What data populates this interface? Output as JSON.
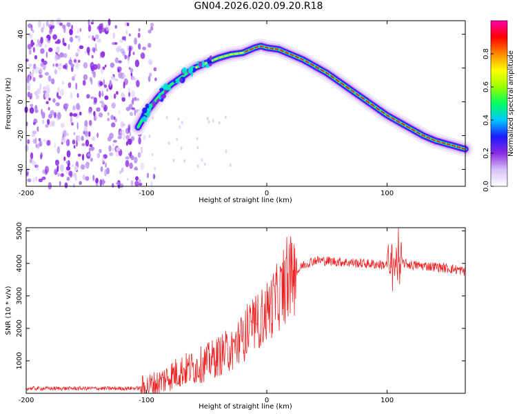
{
  "title": "GN04.2026.020.09.20.R18",
  "chart_data": [
    {
      "type": "heatmap",
      "title": "GN04.2026.020.09.20.R18",
      "xlabel": "Height of straight line (km)",
      "ylabel": "Frequency (Hz)",
      "xlim": [
        -200,
        165
      ],
      "ylim": [
        -50,
        48
      ],
      "xticks": [
        -200,
        -100,
        0,
        100
      ],
      "yticks": [
        -40,
        -20,
        0,
        20,
        40
      ],
      "noise_region_x": [
        -200,
        -100
      ],
      "ridge": {
        "x": [
          -107,
          -100,
          -90,
          -80,
          -70,
          -60,
          -50,
          -40,
          -30,
          -20,
          -10,
          -5,
          0,
          10,
          20,
          30,
          40,
          50,
          60,
          70,
          80,
          90,
          100,
          110,
          120,
          130,
          140,
          150,
          160,
          165
        ],
        "freq": [
          -15,
          -6,
          3,
          10,
          15,
          20,
          23,
          26,
          28,
          29,
          32,
          33,
          32,
          31,
          28,
          25,
          21,
          17,
          12,
          7,
          2,
          -3,
          -8,
          -12,
          -16,
          -20,
          -23,
          -25,
          -27,
          -28
        ]
      },
      "colorbar": {
        "label": "Normalized spectral amplitude",
        "range": [
          0.0,
          1.0
        ],
        "ticks": [
          "0.0",
          "0.2",
          "0.4",
          "0.6",
          "0.8"
        ],
        "tick_values": [
          0.0,
          0.2,
          0.4,
          0.6,
          0.8
        ],
        "colors": [
          "#ffffff",
          "#d6c2f7",
          "#8a2be2",
          "#1a1aff",
          "#00c8ff",
          "#00ff60",
          "#9aff00",
          "#ffff00",
          "#ff8800",
          "#ff0000",
          "#ff00aa"
        ]
      }
    },
    {
      "type": "line",
      "xlabel": "Height of straight line (km)",
      "ylabel": "SNR (10 * v/v)",
      "xlim": [
        -200,
        165
      ],
      "ylim": [
        0,
        5100
      ],
      "xticks": [
        -200,
        -100,
        0,
        100
      ],
      "yticks": [
        1000,
        2000,
        3000,
        4000,
        5000
      ],
      "color": "#ee2222",
      "series": [
        {
          "name": "SNR",
          "x": [
            -200,
            -180,
            -160,
            -140,
            -120,
            -105,
            -100,
            -90,
            -80,
            -70,
            -60,
            -50,
            -40,
            -30,
            -20,
            -10,
            0,
            10,
            20,
            30,
            40,
            60,
            80,
            100,
            105,
            110,
            120,
            140,
            160,
            165
          ],
          "y": [
            150,
            150,
            150,
            150,
            150,
            160,
            200,
            320,
            550,
            700,
            800,
            950,
            1150,
            1350,
            1700,
            2100,
            2500,
            3000,
            3500,
            3950,
            4100,
            4050,
            4000,
            3950,
            3950,
            4050,
            3950,
            3900,
            3800,
            3750
          ]
        }
      ]
    }
  ]
}
